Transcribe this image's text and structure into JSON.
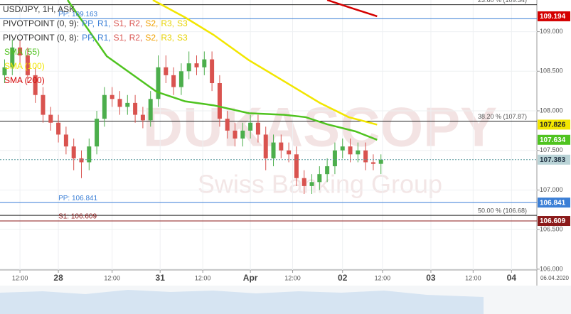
{
  "chart_data": {
    "type": "candlestick",
    "title": "USD/JPY, 1H, ASK",
    "x": [
      -14,
      -12,
      -10,
      -8,
      -6,
      -4,
      -2,
      0,
      2,
      4,
      6,
      8,
      10,
      12,
      14,
      16,
      18,
      20,
      22,
      24,
      26,
      28,
      30,
      32,
      34,
      36,
      38,
      40,
      42,
      44,
      46,
      48,
      50,
      52,
      54,
      56,
      58,
      60,
      62,
      64,
      66,
      68,
      70,
      72,
      74,
      76,
      78,
      80,
      82,
      84
    ],
    "open": [
      108.45,
      108.55,
      108.8,
      108.7,
      108.45,
      108.2,
      107.95,
      107.85,
      107.7,
      107.55,
      107.4,
      107.35,
      107.55,
      107.9,
      108.2,
      108.15,
      108.05,
      108.1,
      107.95,
      107.88,
      108.15,
      108.55,
      108.45,
      108.3,
      108.5,
      108.6,
      108.55,
      108.65,
      108.35,
      107.9,
      107.75,
      107.65,
      107.75,
      107.85,
      107.7,
      107.4,
      107.6,
      107.5,
      107.45,
      107.15,
      107.05,
      107.1,
      107.2,
      107.3,
      107.5,
      107.55,
      107.45,
      107.5,
      107.35,
      107.33
    ],
    "high": [
      108.65,
      108.9,
      108.9,
      108.8,
      108.55,
      108.3,
      108.05,
      107.95,
      107.8,
      107.65,
      107.5,
      107.65,
      108.0,
      108.3,
      108.3,
      108.25,
      108.2,
      108.2,
      108.05,
      108.25,
      108.7,
      108.7,
      108.55,
      108.6,
      108.75,
      108.7,
      108.75,
      108.75,
      108.45,
      108.0,
      107.85,
      107.85,
      107.95,
      107.95,
      107.8,
      107.7,
      107.7,
      107.6,
      107.55,
      107.25,
      107.2,
      107.3,
      107.4,
      107.6,
      107.65,
      107.65,
      107.6,
      107.6,
      107.45,
      107.45
    ],
    "low": [
      108.35,
      108.45,
      108.6,
      108.35,
      108.1,
      107.85,
      107.75,
      107.6,
      107.45,
      107.25,
      107.15,
      107.25,
      107.45,
      107.8,
      108.05,
      107.95,
      107.95,
      107.85,
      107.78,
      107.8,
      108.05,
      108.35,
      108.2,
      108.2,
      108.4,
      108.45,
      108.45,
      108.25,
      107.8,
      107.65,
      107.55,
      107.55,
      107.65,
      107.6,
      107.25,
      107.3,
      107.4,
      107.35,
      107.05,
      106.95,
      106.95,
      107.0,
      107.1,
      107.2,
      107.4,
      107.35,
      107.35,
      107.25,
      107.25,
      107.2
    ],
    "close": [
      108.55,
      108.8,
      108.7,
      108.45,
      108.2,
      107.95,
      107.85,
      107.7,
      107.55,
      107.4,
      107.35,
      107.55,
      107.9,
      108.2,
      108.15,
      108.05,
      108.1,
      107.95,
      107.88,
      108.15,
      108.55,
      108.45,
      108.3,
      108.5,
      108.6,
      108.55,
      108.65,
      108.35,
      107.9,
      107.75,
      107.65,
      107.75,
      107.85,
      107.7,
      107.4,
      107.6,
      107.5,
      107.45,
      107.15,
      107.05,
      107.1,
      107.2,
      107.3,
      107.5,
      107.55,
      107.45,
      107.5,
      107.35,
      107.33,
      107.383
    ],
    "up_color": "#4cae4c",
    "down_color": "#d9534f",
    "last_badge_color": "#b9d3d6",
    "xlim": [
      -15.2,
      124.6
    ],
    "xticks": [
      {
        "value": -10,
        "label": "12:00"
      },
      {
        "value": 0,
        "label": "28"
      },
      {
        "value": 14,
        "label": "12:00"
      },
      {
        "value": 26.5,
        "label": "31"
      },
      {
        "value": 37.6,
        "label": "12:00"
      },
      {
        "value": 50,
        "label": "Apr"
      },
      {
        "value": 61,
        "label": "12:00"
      },
      {
        "value": 74,
        "label": "02"
      },
      {
        "value": 84.4,
        "label": "12:00"
      },
      {
        "value": 97,
        "label": "03"
      },
      {
        "value": 108,
        "label": "12:00"
      },
      {
        "value": 118,
        "label": "04"
      }
    ],
    "date_label": "06.04.2020",
    "ylim": [
      105.99,
      109.4
    ],
    "yticks": [
      {
        "value": 106,
        "label": "106.000"
      },
      {
        "value": 106.5,
        "label": "106.500"
      },
      {
        "value": 107,
        "label": "107.000"
      },
      {
        "value": 107.5,
        "label": "107.500"
      },
      {
        "value": 108,
        "label": "108.000"
      },
      {
        "value": 108.5,
        "label": "108.500"
      },
      {
        "value": 109,
        "label": "109.000"
      }
    ],
    "grid": true,
    "indicators": [
      {
        "name": "SMA (55)",
        "color": "#4fc31f",
        "x": [
          2.4,
          12.6,
          25.6,
          33,
          40.4,
          49.6,
          58.9,
          64.4,
          70,
          77.4,
          83
        ],
        "values": [
          109.4,
          108.69,
          108.24,
          108.12,
          108.07,
          107.97,
          107.95,
          107.92,
          107.83,
          107.74,
          107.634
        ]
      },
      {
        "name": "SMA (100)",
        "color": "#f2e600",
        "x": [
          24.6,
          33,
          40.4,
          49.6,
          58.9,
          68.1,
          75.6,
          83
        ],
        "values": [
          109.4,
          109.18,
          108.96,
          108.64,
          108.37,
          108.1,
          107.92,
          107.826
        ]
      },
      {
        "name": "SMA (200)",
        "color": "#d40000",
        "x": [
          70,
          75.6,
          83
        ],
        "values": [
          109.4,
          109.31,
          109.194
        ]
      }
    ],
    "pivots": [
      {
        "title": "PIVOTPOINT (0, 9):",
        "items": [
          {
            "name": "PP,",
            "color": "#3b7fd6"
          },
          {
            "name": "R1,",
            "color": "#3b7fd6"
          },
          {
            "name": "S1,",
            "color": "#d9534f"
          },
          {
            "name": "R2,",
            "color": "#d9534f"
          },
          {
            "name": "S2,",
            "color": "#f0a000"
          },
          {
            "name": "R3,",
            "color": "#e6d200"
          },
          {
            "name": "S3",
            "color": "#e6d200"
          }
        ]
      },
      {
        "title": "PIVOTPOINT (0, 8):",
        "items": [
          {
            "name": "PP,",
            "color": "#3b7fd6"
          },
          {
            "name": "R1,",
            "color": "#3b7fd6"
          },
          {
            "name": "S1,",
            "color": "#d9534f"
          },
          {
            "name": "R2,",
            "color": "#d9534f"
          },
          {
            "name": "S2,",
            "color": "#f0a000"
          },
          {
            "name": "R3,",
            "color": "#e6d200"
          },
          {
            "name": "S3",
            "color": "#e6d200"
          }
        ]
      }
    ],
    "levels": [
      {
        "label": "PP: 109.163",
        "value": 109.163,
        "color": "#3b7fd6",
        "badge": false
      },
      {
        "label": "PP: 106.841",
        "value": 106.841,
        "color": "#3b7fd6",
        "badge": true
      },
      {
        "label": "S1: 106.609",
        "value": 106.609,
        "color": "#8b1a1a",
        "badge": true
      }
    ],
    "fib": [
      {
        "label": "23.60 % (109.34)",
        "value": 109.34
      },
      {
        "label": "38.20 % (107.87)",
        "value": 107.87
      },
      {
        "label": "50.00 % (106.68)",
        "value": 106.68
      }
    ],
    "watermark": [
      "DUKASCOPY",
      "Swiss Banking Group"
    ]
  }
}
